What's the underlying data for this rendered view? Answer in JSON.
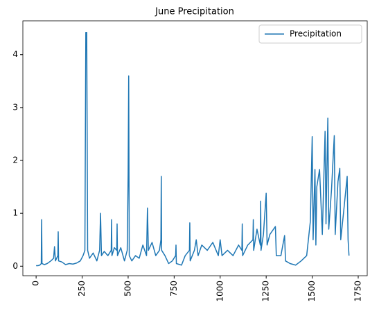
{
  "chart_data": {
    "type": "line",
    "title": "June Precipitation",
    "x": [
      0,
      10,
      20,
      28,
      30,
      32,
      45,
      60,
      80,
      95,
      100,
      105,
      118,
      120,
      122,
      140,
      160,
      180,
      200,
      220,
      240,
      255,
      265,
      270,
      275,
      280,
      290,
      310,
      330,
      345,
      350,
      355,
      370,
      390,
      408,
      410,
      412,
      425,
      438,
      440,
      442,
      460,
      480,
      495,
      500,
      503,
      506,
      520,
      540,
      560,
      580,
      600,
      605,
      610,
      630,
      650,
      670,
      678,
      680,
      682,
      700,
      720,
      740,
      758,
      760,
      762,
      790,
      810,
      833,
      835,
      837,
      860,
      870,
      880,
      900,
      930,
      960,
      990,
      1000,
      1010,
      1040,
      1070,
      1100,
      1118,
      1120,
      1122,
      1150,
      1178,
      1180,
      1182,
      1200,
      1218,
      1220,
      1222,
      1235,
      1250,
      1255,
      1270,
      1300,
      1305,
      1330,
      1350,
      1355,
      1380,
      1410,
      1440,
      1470,
      1490,
      1500,
      1505,
      1515,
      1520,
      1525,
      1540,
      1555,
      1570,
      1575,
      1585,
      1590,
      1605,
      1620,
      1625,
      1640,
      1650,
      1655,
      1670,
      1690,
      1695,
      1700
    ],
    "series": [
      {
        "name": "Precipitation",
        "color": "#1f77b4",
        "values": [
          0.01,
          0.01,
          0.02,
          0.05,
          0.88,
          0.05,
          0.03,
          0.05,
          0.1,
          0.15,
          0.37,
          0.1,
          0.2,
          0.65,
          0.1,
          0.08,
          0.03,
          0.05,
          0.04,
          0.06,
          0.1,
          0.2,
          0.3,
          4.42,
          4.42,
          0.3,
          0.15,
          0.25,
          0.1,
          0.3,
          1.0,
          0.2,
          0.28,
          0.2,
          0.3,
          0.88,
          0.2,
          0.35,
          0.3,
          0.8,
          0.2,
          0.35,
          0.1,
          0.3,
          1.75,
          3.6,
          0.2,
          0.1,
          0.2,
          0.15,
          0.4,
          0.2,
          1.1,
          0.3,
          0.45,
          0.2,
          0.3,
          0.5,
          1.7,
          0.3,
          0.2,
          0.05,
          0.1,
          0.2,
          0.4,
          0.05,
          0.02,
          0.2,
          0.3,
          0.82,
          0.1,
          0.3,
          0.5,
          0.2,
          0.4,
          0.3,
          0.45,
          0.2,
          0.5,
          0.2,
          0.3,
          0.2,
          0.4,
          0.3,
          0.8,
          0.2,
          0.4,
          0.5,
          0.88,
          0.3,
          0.7,
          0.4,
          1.23,
          0.3,
          0.6,
          1.38,
          0.4,
          0.6,
          0.75,
          0.2,
          0.2,
          0.58,
          0.1,
          0.05,
          0.02,
          0.1,
          0.2,
          0.85,
          2.45,
          0.5,
          1.83,
          0.4,
          1.5,
          1.83,
          0.6,
          2.55,
          0.8,
          2.8,
          0.7,
          1.45,
          2.47,
          0.6,
          1.6,
          1.85,
          0.5,
          1.0,
          1.7,
          0.5,
          0.2
        ]
      }
    ],
    "xlim": [
      -72,
      1799
    ],
    "xticks": [
      0,
      250,
      500,
      750,
      1000,
      1250,
      1500,
      1750
    ],
    "ylim": [
      -0.18,
      4.64
    ],
    "yticks": [
      0,
      1,
      2,
      3,
      4
    ],
    "legend": "upper right"
  }
}
